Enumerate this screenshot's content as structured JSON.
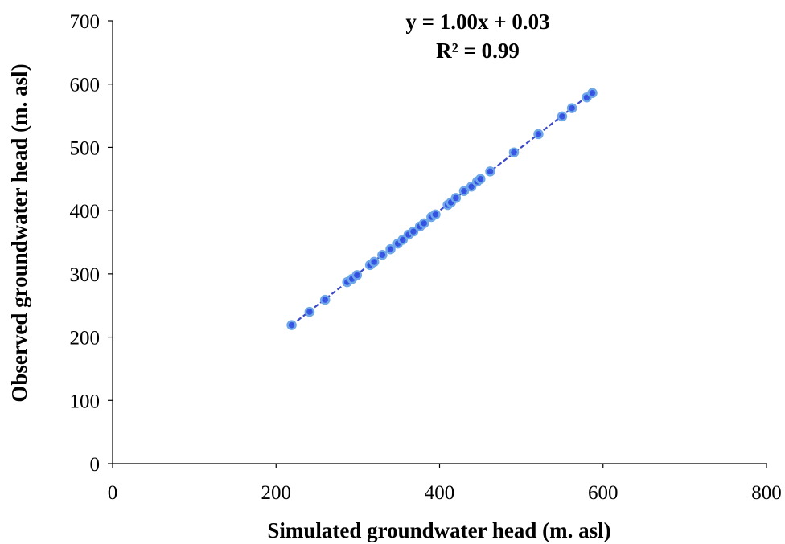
{
  "chart_data": {
    "type": "scatter",
    "xlabel": "Simulated groundwater head  (m. asl)",
    "ylabel": "Observed groundwater head  (m. asl)",
    "xlim": [
      0,
      800
    ],
    "ylim": [
      0,
      700
    ],
    "x_ticks": [
      0,
      200,
      400,
      600,
      800
    ],
    "y_ticks": [
      0,
      100,
      200,
      300,
      400,
      500,
      600,
      700
    ],
    "x_tick_labels": [
      "0",
      "200",
      "400",
      "600",
      "800"
    ],
    "y_tick_labels": [
      "0",
      "100",
      "200",
      "300",
      "400",
      "500",
      "600",
      "700"
    ],
    "grid": false,
    "annotations": {
      "equation": "y = 1.00x + 0.03",
      "r_squared": "R² = 0.99"
    },
    "trendline": {
      "slope": 1.0,
      "intercept": 0.03,
      "x_range": [
        219,
        588
      ],
      "style": "dashed"
    },
    "marker_color": "#2f4fe0",
    "marker_edge_color": "#6fa8e8",
    "trendline_color": "#3b49c8",
    "series": [
      {
        "x": [
          219,
          241,
          260,
          287,
          293,
          299,
          315,
          320,
          330,
          340,
          349,
          355,
          362,
          368,
          376,
          381,
          390,
          395,
          410,
          414,
          420,
          430,
          439,
          446,
          450,
          462,
          491,
          521,
          550,
          562,
          580,
          587
        ],
        "y": [
          219,
          240,
          259,
          287,
          292,
          298,
          314,
          319,
          330,
          339,
          348,
          354,
          362,
          367,
          375,
          380,
          390,
          394,
          409,
          413,
          420,
          431,
          438,
          446,
          450,
          462,
          492,
          521,
          549,
          562,
          579,
          586
        ]
      }
    ]
  }
}
